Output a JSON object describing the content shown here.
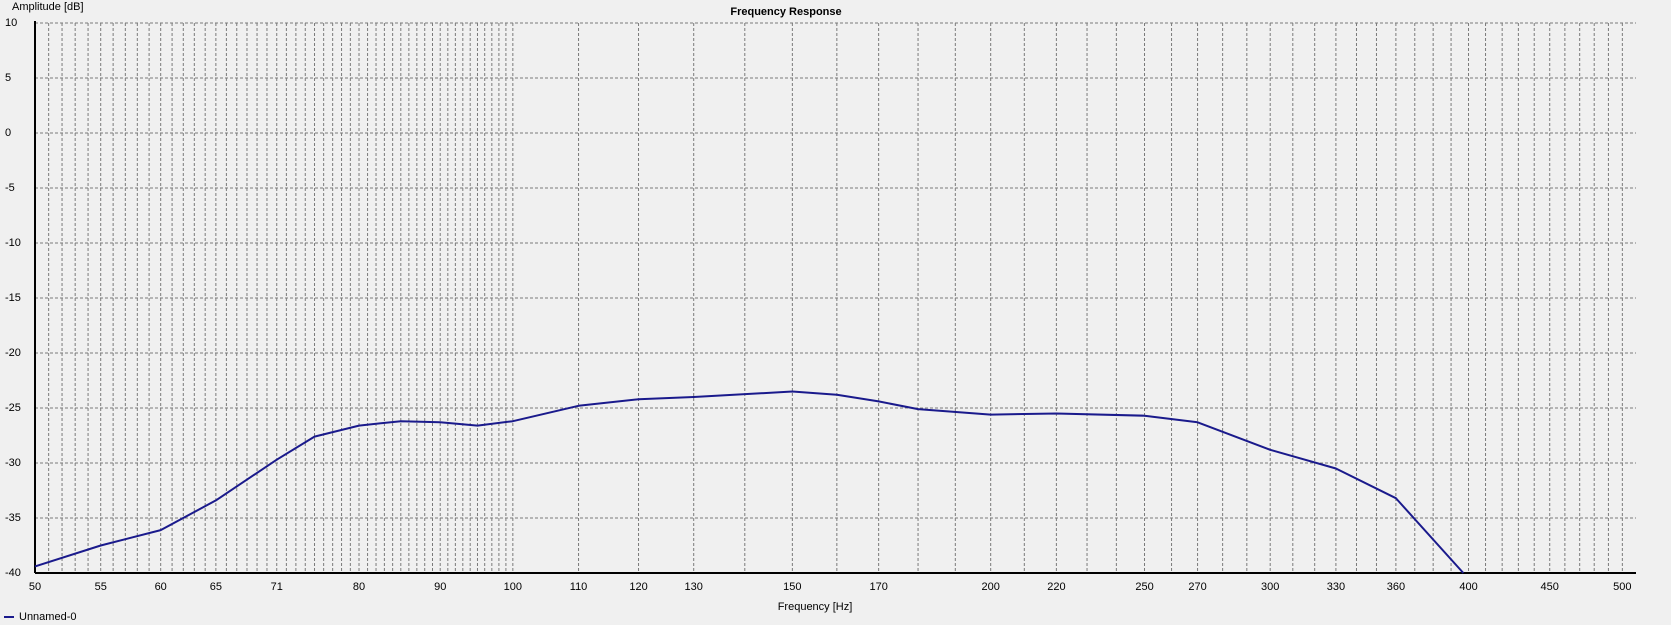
{
  "chart_data": {
    "type": "line",
    "title": "Frequency Response",
    "x_label": "Frequency [Hz]",
    "y_label": "Amplitude [dB]",
    "log_x": true,
    "grid": true,
    "xlim": [
      50,
      510
    ],
    "ylim": [
      -40,
      10
    ],
    "xticks": [
      50,
      55,
      60,
      65,
      71,
      80,
      90,
      100,
      110,
      120,
      130,
      150,
      170,
      200,
      220,
      250,
      270,
      300,
      330,
      360,
      400,
      450,
      500
    ],
    "minor_xticks": [
      51,
      52,
      53,
      54,
      56,
      57,
      58,
      59,
      61,
      62,
      63,
      64,
      66,
      67,
      68,
      69,
      70,
      72,
      73,
      74,
      75,
      76,
      77,
      78,
      79,
      81,
      82,
      83,
      84,
      85,
      86,
      87,
      88,
      89,
      91,
      92,
      93,
      94,
      95,
      96,
      97,
      98,
      99,
      140,
      160,
      180,
      190,
      210,
      230,
      240,
      260,
      280,
      290,
      310,
      320,
      340,
      350,
      370,
      380,
      390,
      410,
      420,
      430,
      440,
      460,
      470,
      480,
      490
    ],
    "yticks": [
      10,
      5,
      0,
      -5,
      -10,
      -15,
      -20,
      -25,
      -30,
      -35,
      -40
    ],
    "legend": "bottom-left",
    "series": [
      {
        "name": "Unnamed-0",
        "color": "#1a1a8c",
        "x": [
          50,
          55,
          60,
          65,
          71,
          75,
          80,
          85,
          90,
          95,
          100,
          110,
          120,
          130,
          150,
          160,
          170,
          180,
          200,
          220,
          250,
          270,
          300,
          330,
          360,
          397
        ],
        "values": [
          -39.4,
          -37.5,
          -36.1,
          -33.4,
          -29.7,
          -27.6,
          -26.6,
          -26.2,
          -26.3,
          -26.6,
          -26.2,
          -24.8,
          -24.2,
          -24.0,
          -23.5,
          -23.8,
          -24.4,
          -25.1,
          -25.6,
          -25.5,
          -25.7,
          -26.3,
          -28.8,
          -30.5,
          -33.2,
          -40
        ]
      }
    ]
  }
}
